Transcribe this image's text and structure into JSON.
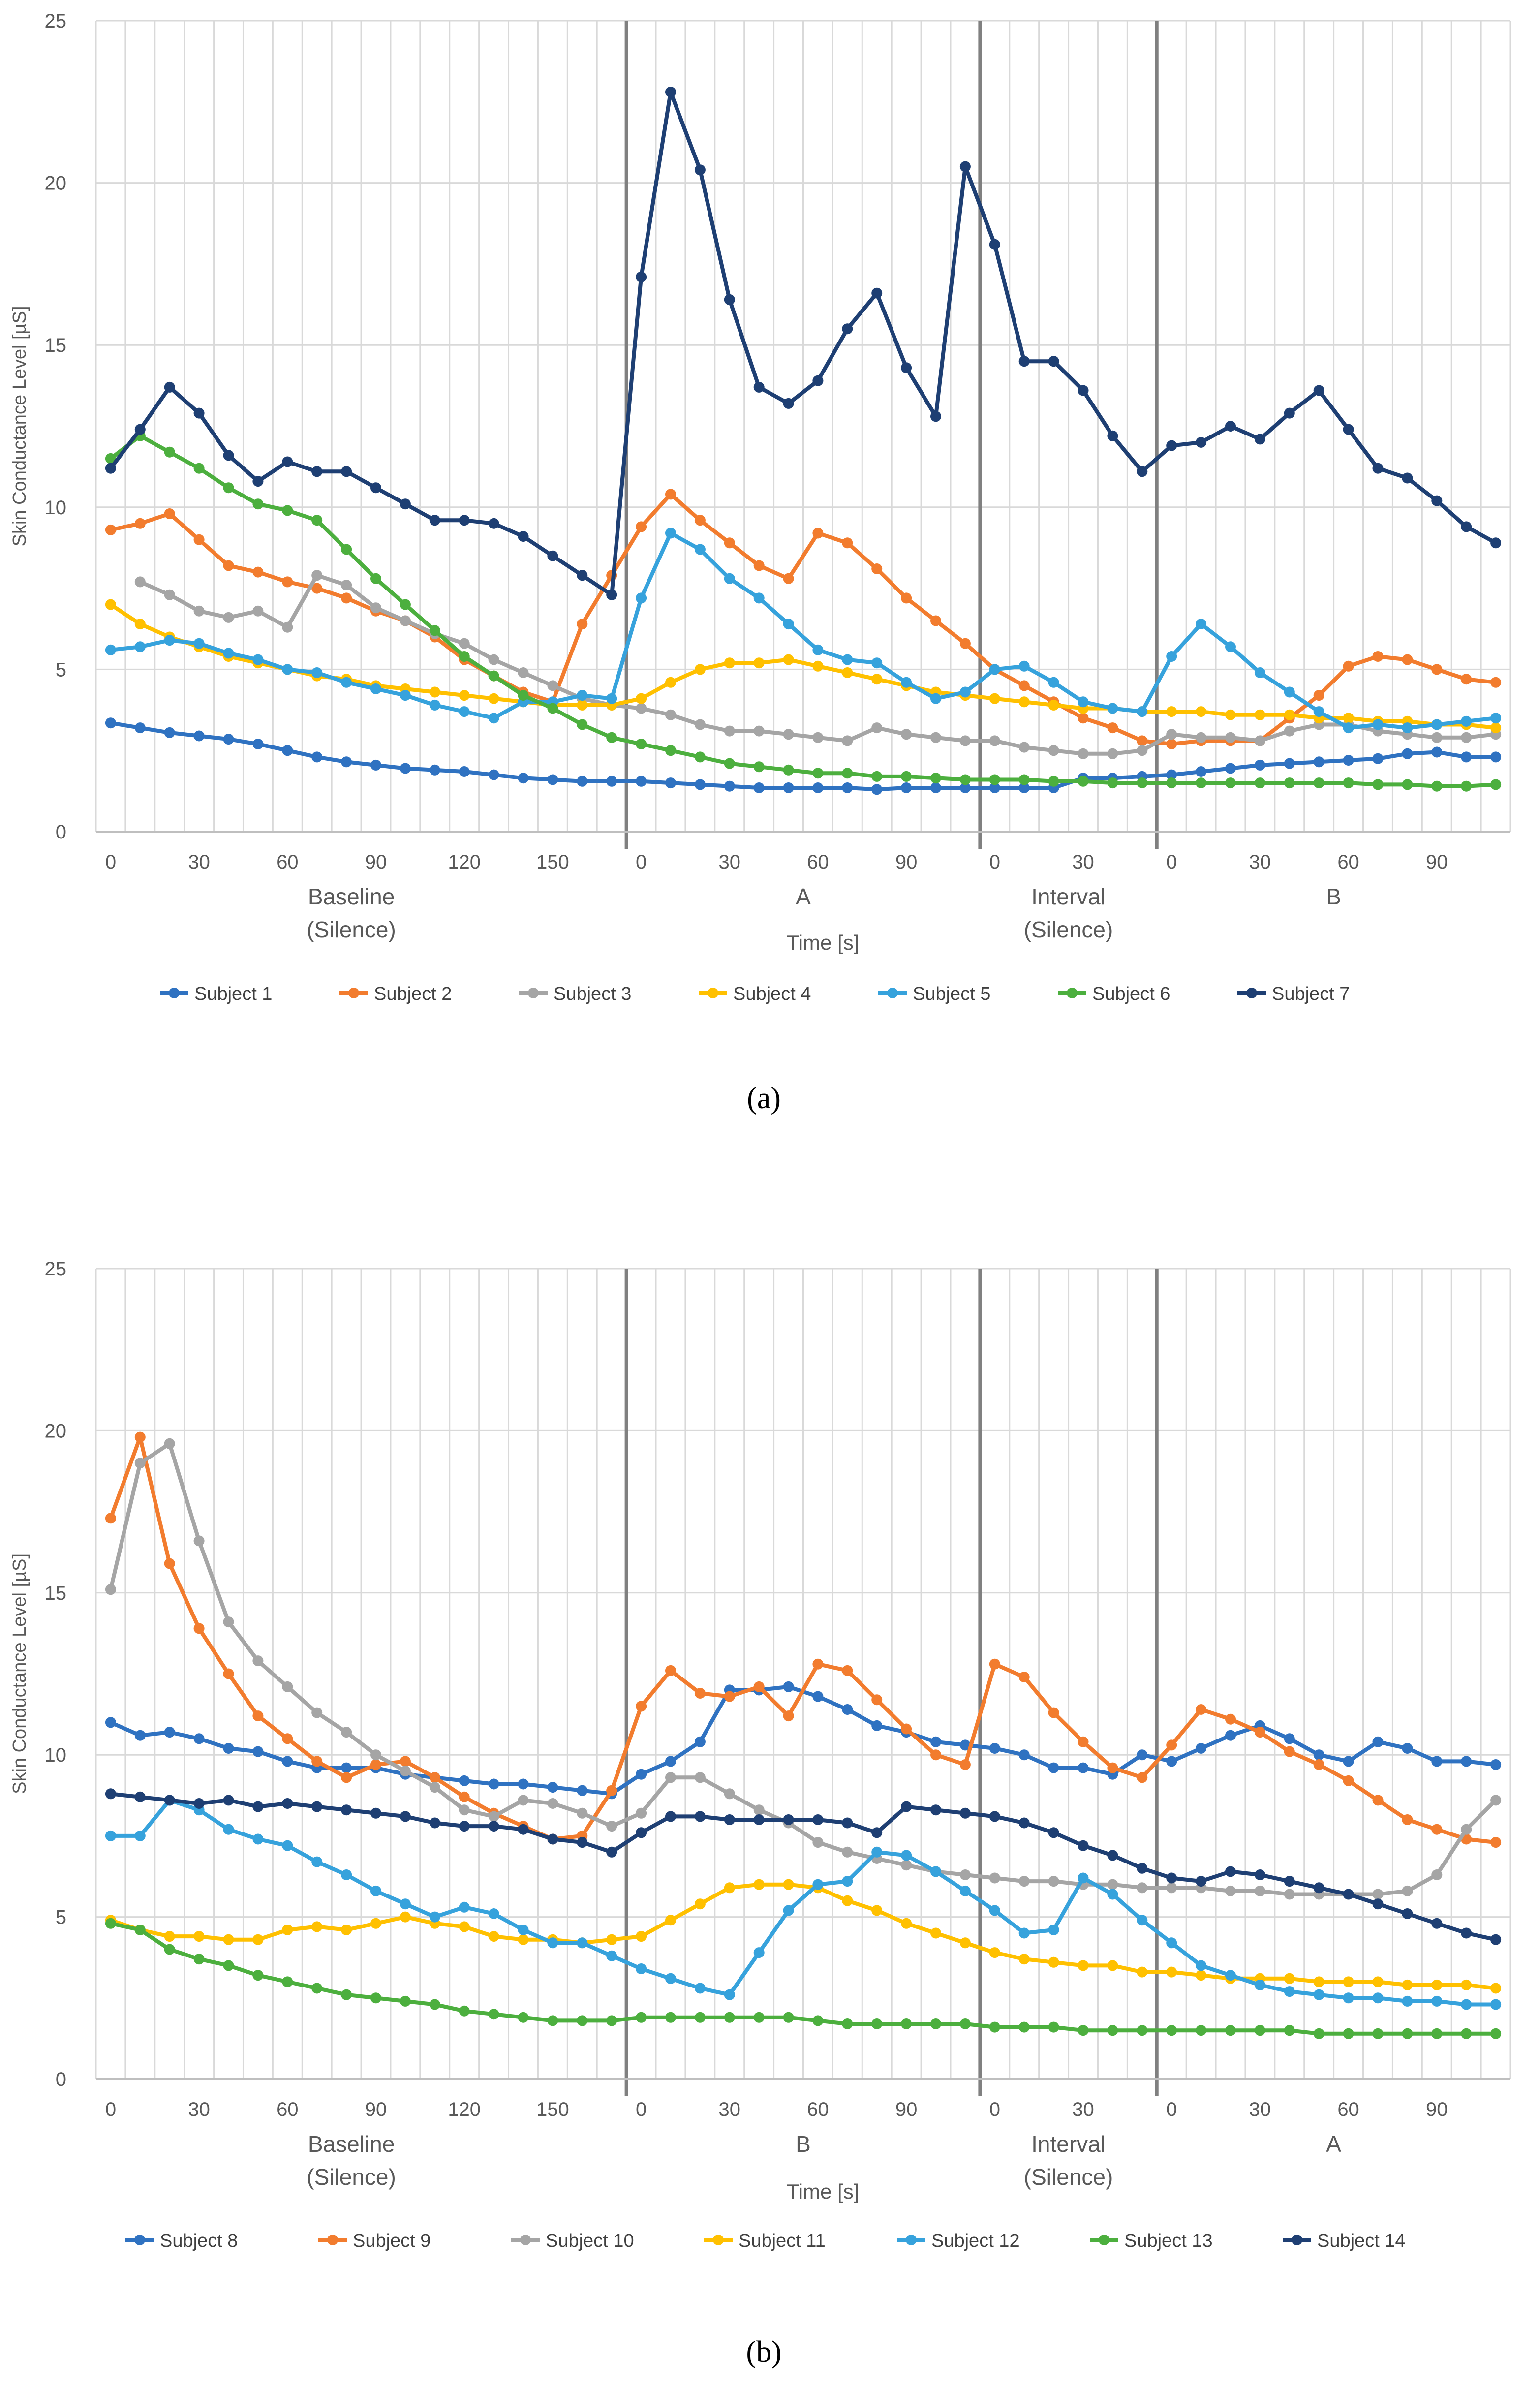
{
  "chart_data": [
    {
      "type": "line",
      "caption": "(a)",
      "ylabel": "Skin Conductance Level [µS]",
      "xlabel": "Time [s]",
      "ylim": [
        0,
        25
      ],
      "yticks": [
        "0",
        "5",
        "10",
        "15",
        "20",
        "25"
      ],
      "x_tick_labels": [
        "0",
        "30",
        "60",
        "90",
        "120",
        "150",
        "0",
        "30",
        "60",
        "90",
        "0",
        "30",
        "0",
        "30",
        "60",
        "90"
      ],
      "phases": [
        {
          "name": "Baseline",
          "sub": "(Silence)",
          "start": 0,
          "end": 18
        },
        {
          "name": "A",
          "sub": "",
          "start": 18,
          "end": 30
        },
        {
          "name": "Interval",
          "sub": "(Silence)",
          "start": 30,
          "end": 36
        },
        {
          "name": "B",
          "sub": "",
          "start": 36,
          "end": 48
        }
      ],
      "grid": true,
      "series": [
        {
          "name": "Subject 1",
          "color": "#2F72C1",
          "values": [
            3.35,
            3.2,
            3.05,
            2.95,
            2.85,
            2.7,
            2.5,
            2.3,
            2.15,
            2.05,
            1.95,
            1.9,
            1.85,
            1.75,
            1.65,
            1.6,
            1.55,
            1.55,
            1.55,
            1.5,
            1.45,
            1.4,
            1.35,
            1.35,
            1.35,
            1.35,
            1.3,
            1.35,
            1.35,
            1.35,
            1.35,
            1.35,
            1.35,
            1.65,
            1.65,
            1.7,
            1.75,
            1.85,
            1.95,
            2.05,
            2.1,
            2.15,
            2.2,
            2.25,
            2.4,
            2.45,
            2.3,
            2.3
          ]
        },
        {
          "name": "Subject 2",
          "color": "#F27C2E",
          "values": [
            9.3,
            9.5,
            9.8,
            9.0,
            8.2,
            8.0,
            7.7,
            7.5,
            7.2,
            6.8,
            6.5,
            6.0,
            5.3,
            4.8,
            4.3,
            4.0,
            6.4,
            7.9,
            9.4,
            10.4,
            9.6,
            8.9,
            8.2,
            7.8,
            9.2,
            8.9,
            8.1,
            7.2,
            6.5,
            5.8,
            5.0,
            4.5,
            4.0,
            3.5,
            3.2,
            2.8,
            2.7,
            2.8,
            2.8,
            2.8,
            3.5,
            4.2,
            5.1,
            5.4,
            5.3,
            5.0,
            4.7,
            4.6
          ]
        },
        {
          "name": "Subject 3",
          "color": "#A5A5A5",
          "values": [
            null,
            7.7,
            7.3,
            6.8,
            6.6,
            6.8,
            6.3,
            7.9,
            7.6,
            6.9,
            6.5,
            6.1,
            5.8,
            5.3,
            4.9,
            4.5,
            4.1,
            3.9,
            3.8,
            3.6,
            3.3,
            3.1,
            3.1,
            3.0,
            2.9,
            2.8,
            3.2,
            3.0,
            2.9,
            2.8,
            2.8,
            2.6,
            2.5,
            2.4,
            2.4,
            2.5,
            3.0,
            2.9,
            2.9,
            2.8,
            3.1,
            3.3,
            3.3,
            3.1,
            3.0,
            2.9,
            2.9,
            3.0
          ]
        },
        {
          "name": "Subject 4",
          "color": "#FFC000",
          "values": [
            7.0,
            6.4,
            6.0,
            5.7,
            5.4,
            5.2,
            5.0,
            4.8,
            4.7,
            4.5,
            4.4,
            4.3,
            4.2,
            4.1,
            4.0,
            3.9,
            3.9,
            3.9,
            4.1,
            4.6,
            5.0,
            5.2,
            5.2,
            5.3,
            5.1,
            4.9,
            4.7,
            4.5,
            4.3,
            4.2,
            4.1,
            4.0,
            3.9,
            3.8,
            3.8,
            3.7,
            3.7,
            3.7,
            3.6,
            3.6,
            3.6,
            3.5,
            3.5,
            3.4,
            3.4,
            3.3,
            3.3,
            3.2
          ]
        },
        {
          "name": "Subject 5",
          "color": "#36A2DC",
          "values": [
            5.6,
            5.7,
            5.9,
            5.8,
            5.5,
            5.3,
            5.0,
            4.9,
            4.6,
            4.4,
            4.2,
            3.9,
            3.7,
            3.5,
            4.0,
            4.0,
            4.2,
            4.1,
            7.2,
            9.2,
            8.7,
            7.8,
            7.2,
            6.4,
            5.6,
            5.3,
            5.2,
            4.6,
            4.1,
            4.3,
            5.0,
            5.1,
            4.6,
            4.0,
            3.8,
            3.7,
            5.4,
            6.4,
            5.7,
            4.9,
            4.3,
            3.7,
            3.2,
            3.3,
            3.2,
            3.3,
            3.4,
            3.5
          ]
        },
        {
          "name": "Subject 6",
          "color": "#4CAF3E",
          "values": [
            11.5,
            12.2,
            11.7,
            11.2,
            10.6,
            10.1,
            9.9,
            9.6,
            8.7,
            7.8,
            7.0,
            6.2,
            5.4,
            4.8,
            4.2,
            3.8,
            3.3,
            2.9,
            2.7,
            2.5,
            2.3,
            2.1,
            2.0,
            1.9,
            1.8,
            1.8,
            1.7,
            1.7,
            1.65,
            1.6,
            1.6,
            1.6,
            1.55,
            1.55,
            1.5,
            1.5,
            1.5,
            1.5,
            1.5,
            1.5,
            1.5,
            1.5,
            1.5,
            1.45,
            1.45,
            1.4,
            1.4,
            1.45
          ]
        },
        {
          "name": "Subject 7",
          "color": "#1E3F73",
          "values": [
            11.2,
            12.4,
            13.7,
            12.9,
            11.6,
            10.8,
            11.4,
            11.1,
            11.1,
            10.6,
            10.1,
            9.6,
            9.6,
            9.5,
            9.1,
            8.5,
            7.9,
            7.3,
            17.1,
            22.8,
            20.4,
            16.4,
            13.7,
            13.2,
            13.9,
            15.5,
            16.6,
            14.3,
            12.8,
            20.5,
            18.1,
            14.5,
            14.5,
            13.6,
            12.2,
            11.1,
            11.9,
            12.0,
            12.5,
            12.1,
            12.9,
            13.6,
            12.4,
            11.2,
            10.9,
            10.2,
            9.4,
            8.9
          ]
        }
      ]
    },
    {
      "type": "line",
      "caption": "(b)",
      "ylabel": "Skin Conductance Level [µS]",
      "xlabel": "Time [s]",
      "ylim": [
        0,
        25
      ],
      "yticks": [
        "0",
        "5",
        "10",
        "15",
        "20",
        "25"
      ],
      "x_tick_labels": [
        "0",
        "30",
        "60",
        "90",
        "120",
        "150",
        "0",
        "30",
        "60",
        "90",
        "0",
        "30",
        "0",
        "30",
        "60",
        "90"
      ],
      "phases": [
        {
          "name": "Baseline",
          "sub": "(Silence)",
          "start": 0,
          "end": 18
        },
        {
          "name": "B",
          "sub": "",
          "start": 18,
          "end": 30
        },
        {
          "name": "Interval",
          "sub": "(Silence)",
          "start": 30,
          "end": 36
        },
        {
          "name": "A",
          "sub": "",
          "start": 36,
          "end": 48
        }
      ],
      "grid": true,
      "series": [
        {
          "name": "Subject 8",
          "color": "#2F72C1",
          "values": [
            11.0,
            10.6,
            10.7,
            10.5,
            10.2,
            10.1,
            9.8,
            9.6,
            9.6,
            9.6,
            9.4,
            9.3,
            9.2,
            9.1,
            9.1,
            9.0,
            8.9,
            8.8,
            9.4,
            9.8,
            10.4,
            12.0,
            12.0,
            12.1,
            11.8,
            11.4,
            10.9,
            10.7,
            10.4,
            10.3,
            10.2,
            10.0,
            9.6,
            9.6,
            9.4,
            10.0,
            9.8,
            10.2,
            10.6,
            10.9,
            10.5,
            10.0,
            9.8,
            10.4,
            10.2,
            9.8,
            9.8,
            9.7
          ]
        },
        {
          "name": "Subject 9",
          "color": "#F27C2E",
          "values": [
            17.3,
            19.8,
            15.9,
            13.9,
            12.5,
            11.2,
            10.5,
            9.8,
            9.3,
            9.7,
            9.8,
            9.3,
            8.7,
            8.2,
            7.8,
            7.4,
            7.5,
            8.9,
            11.5,
            12.6,
            11.9,
            11.8,
            12.1,
            11.2,
            12.8,
            12.6,
            11.7,
            10.8,
            10.0,
            9.7,
            12.8,
            12.4,
            11.3,
            10.4,
            9.6,
            9.3,
            10.3,
            11.4,
            11.1,
            10.7,
            10.1,
            9.7,
            9.2,
            8.6,
            8.0,
            7.7,
            7.4,
            7.3
          ]
        },
        {
          "name": "Subject 10",
          "color": "#A5A5A5",
          "values": [
            15.1,
            19.0,
            19.6,
            16.6,
            14.1,
            12.9,
            12.1,
            11.3,
            10.7,
            10.0,
            9.5,
            9.0,
            8.3,
            8.1,
            8.6,
            8.5,
            8.2,
            7.8,
            8.2,
            9.3,
            9.3,
            8.8,
            8.3,
            7.9,
            7.3,
            7.0,
            6.8,
            6.6,
            6.4,
            6.3,
            6.2,
            6.1,
            6.1,
            6.0,
            6.0,
            5.9,
            5.9,
            5.9,
            5.8,
            5.8,
            5.7,
            5.7,
            5.7,
            5.7,
            5.8,
            6.3,
            7.7,
            8.6
          ]
        },
        {
          "name": "Subject 11",
          "color": "#FFC000",
          "values": [
            4.9,
            4.6,
            4.4,
            4.4,
            4.3,
            4.3,
            4.6,
            4.7,
            4.6,
            4.8,
            5.0,
            4.8,
            4.7,
            4.4,
            4.3,
            4.3,
            4.2,
            4.3,
            4.4,
            4.9,
            5.4,
            5.9,
            6.0,
            6.0,
            5.9,
            5.5,
            5.2,
            4.8,
            4.5,
            4.2,
            3.9,
            3.7,
            3.6,
            3.5,
            3.5,
            3.3,
            3.3,
            3.2,
            3.1,
            3.1,
            3.1,
            3.0,
            3.0,
            3.0,
            2.9,
            2.9,
            2.9,
            2.8
          ]
        },
        {
          "name": "Subject 12",
          "color": "#36A2DC",
          "values": [
            7.5,
            7.5,
            8.6,
            8.3,
            7.7,
            7.4,
            7.2,
            6.7,
            6.3,
            5.8,
            5.4,
            5.0,
            5.3,
            5.1,
            4.6,
            4.2,
            4.2,
            3.8,
            3.4,
            3.1,
            2.8,
            2.6,
            3.9,
            5.2,
            6.0,
            6.1,
            7.0,
            6.9,
            6.4,
            5.8,
            5.2,
            4.5,
            4.6,
            6.2,
            5.7,
            4.9,
            4.2,
            3.5,
            3.2,
            2.9,
            2.7,
            2.6,
            2.5,
            2.5,
            2.4,
            2.4,
            2.3,
            2.3
          ]
        },
        {
          "name": "Subject 13",
          "color": "#4CAF3E",
          "values": [
            4.8,
            4.6,
            4.0,
            3.7,
            3.5,
            3.2,
            3.0,
            2.8,
            2.6,
            2.5,
            2.4,
            2.3,
            2.1,
            2.0,
            1.9,
            1.8,
            1.8,
            1.8,
            1.9,
            1.9,
            1.9,
            1.9,
            1.9,
            1.9,
            1.8,
            1.7,
            1.7,
            1.7,
            1.7,
            1.7,
            1.6,
            1.6,
            1.6,
            1.5,
            1.5,
            1.5,
            1.5,
            1.5,
            1.5,
            1.5,
            1.5,
            1.4,
            1.4,
            1.4,
            1.4,
            1.4,
            1.4,
            1.4
          ]
        },
        {
          "name": "Subject 14",
          "color": "#1E3F73",
          "values": [
            8.8,
            8.7,
            8.6,
            8.5,
            8.6,
            8.4,
            8.5,
            8.4,
            8.3,
            8.2,
            8.1,
            7.9,
            7.8,
            7.8,
            7.7,
            7.4,
            7.3,
            7.0,
            7.6,
            8.1,
            8.1,
            8.0,
            8.0,
            8.0,
            8.0,
            7.9,
            7.6,
            8.4,
            8.3,
            8.2,
            8.1,
            7.9,
            7.6,
            7.2,
            6.9,
            6.5,
            6.2,
            6.1,
            6.4,
            6.3,
            6.1,
            5.9,
            5.7,
            5.4,
            5.1,
            4.8,
            4.5,
            4.3
          ]
        }
      ]
    }
  ]
}
